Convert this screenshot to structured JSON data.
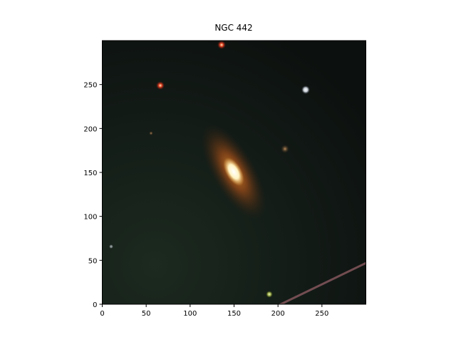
{
  "chart_data": {
    "type": "image",
    "title": "NGC 442",
    "xlim": [
      0,
      300
    ],
    "ylim": [
      0,
      300
    ],
    "xticks": [
      0,
      50,
      100,
      150,
      200,
      250
    ],
    "yticks": [
      0,
      50,
      100,
      150,
      200,
      250
    ]
  }
}
